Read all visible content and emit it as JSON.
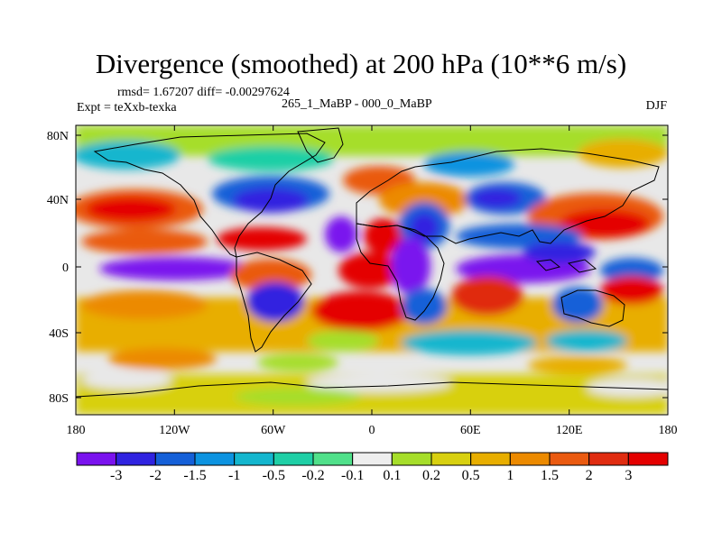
{
  "title": "Divergence (smoothed) at 200 hPa (10**6 m/s)",
  "stats_line": "rmsd= 1.67207 diff= -0.00297624",
  "experiment": "Expt = teXxb-texka",
  "comparison": "265_1_MaBP - 000_0_MaBP",
  "season": "DJF",
  "lat_ticks": [
    "80N",
    "40N",
    "0",
    "40S",
    "80S"
  ],
  "lon_ticks": [
    "180",
    "120W",
    "60W",
    "0",
    "60E",
    "120E",
    "180"
  ],
  "colorbar": {
    "labels": [
      "-3",
      "-2",
      "-1.5",
      "-1",
      "-0.5",
      "-0.2",
      "-0.1",
      "0.1",
      "0.2",
      "0.5",
      "1",
      "1.5",
      "2",
      "3"
    ],
    "colors": [
      "#7a12ee",
      "#3023e0",
      "#1560d8",
      "#0d93e0",
      "#14b6ce",
      "#1fcfa6",
      "#50e08a",
      "#eeeeee",
      "#a6de2a",
      "#d8d010",
      "#e8ae00",
      "#ec8a00",
      "#ea5a10",
      "#e02c10",
      "#e40000"
    ]
  }
}
